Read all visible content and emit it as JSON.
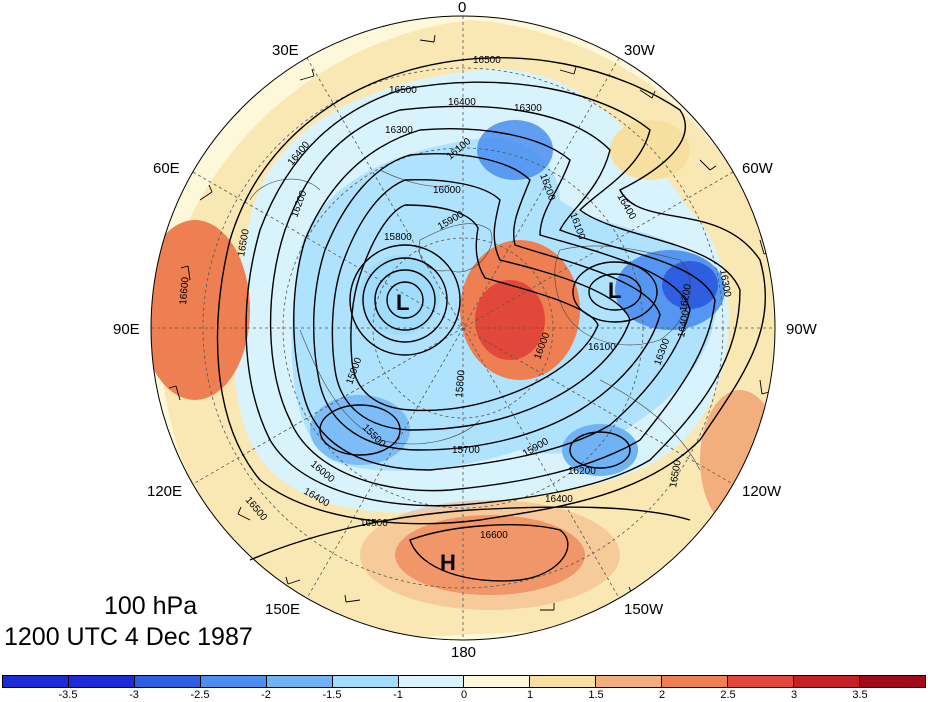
{
  "title": {
    "level": "100 hPa",
    "time": "1200 UTC 4 Dec 1987"
  },
  "longitude_labels": [
    "0",
    "30W",
    "60W",
    "90W",
    "120W",
    "150W",
    "180",
    "150E",
    "120E",
    "90E",
    "60E",
    "30E"
  ],
  "contour_labels": [
    "16500",
    "16500",
    "16400",
    "16300",
    "16300",
    "16400",
    "16200",
    "16100",
    "16000",
    "16100",
    "16200",
    "16400",
    "16500",
    "15800",
    "15900",
    "16600",
    "16000",
    "16100",
    "16300",
    "16200",
    "16400",
    "16500",
    "16300",
    "15900",
    "15500",
    "15800",
    "15700",
    "15900",
    "16200",
    "16400",
    "16500",
    "16600",
    "16400",
    "16500",
    "16000"
  ],
  "pressure_centers": [
    {
      "label": "L",
      "region": "Siberia"
    },
    {
      "label": "L",
      "region": "Hudson Bay"
    },
    {
      "label": "H",
      "region": "North Pacific"
    }
  ],
  "colorbar": {
    "colors": [
      "#1c2bd6",
      "#2f5fe0",
      "#4a8ef0",
      "#6fb3f5",
      "#a0dcfb",
      "#d9f3fd",
      "#fdf8da",
      "#f7dfa0",
      "#f3ae7e",
      "#ee7f52",
      "#e2483a",
      "#c52125",
      "#a10a1a"
    ],
    "labels": [
      "-3.5",
      "-3",
      "-2.5",
      "-2",
      "-1.5",
      "-1",
      "0",
      "1",
      "1.5",
      "2",
      "2.5",
      "3",
      "3.5"
    ]
  }
}
